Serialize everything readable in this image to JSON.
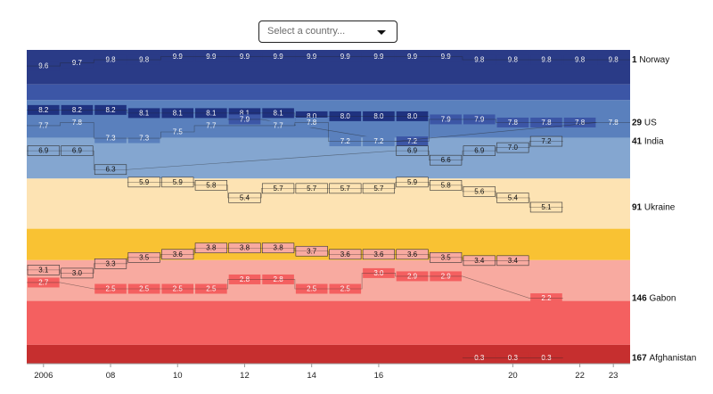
{
  "select": {
    "placeholder": "Select a country...",
    "icon": "caret-down-icon"
  },
  "chart_data": {
    "type": "area",
    "title": "",
    "xlabel": "",
    "ylabel": "",
    "x_ticks": [
      "2006",
      "08",
      "10",
      "12",
      "14",
      "16",
      "20",
      "22",
      "23"
    ],
    "x_categories": [
      "2006",
      "2007",
      "2008",
      "2009",
      "2010",
      "2011",
      "2012",
      "2013",
      "2014",
      "2015",
      "2016",
      "2017",
      "2018",
      "2019",
      "2020",
      "2021",
      "2022",
      "2023"
    ],
    "band_colors": [
      "#2a3b87",
      "#3c56a6",
      "#5a80bd",
      "#84a6d0",
      "#fde3b3",
      "#f9c233",
      "#f8aaa0",
      "#f46060",
      "#c62f2f"
    ],
    "series": [
      {
        "name": "Norway",
        "rank": "1",
        "label": "Norway",
        "color": "#2a3b87",
        "values": [
          9.6,
          9.7,
          9.8,
          9.8,
          9.9,
          9.9,
          9.9,
          9.9,
          9.9,
          9.9,
          9.9,
          9.9,
          9.9,
          9.8,
          9.8,
          9.8,
          9.8,
          9.8
        ]
      },
      {
        "name": "",
        "rank": "",
        "label": "",
        "color": "#1f3280",
        "values": [
          8.2,
          8.2,
          8.2,
          8.1,
          8.1,
          8.1,
          8.1,
          8.1,
          8.0,
          8.0,
          8.0,
          8.0,
          null,
          null,
          null,
          null,
          null,
          null
        ]
      },
      {
        "name": "",
        "rank": "",
        "label": "",
        "color": "#3c56a6",
        "values": [
          null,
          null,
          null,
          null,
          null,
          null,
          7.9,
          null,
          null,
          null,
          null,
          7.2,
          7.9,
          7.9,
          7.8,
          7.8,
          7.8,
          null
        ]
      },
      {
        "name": "US",
        "rank": "29",
        "label": "US",
        "color": "#5a80bd",
        "values": [
          7.7,
          7.8,
          7.3,
          7.3,
          7.5,
          7.7,
          null,
          7.7,
          7.8,
          7.2,
          7.2,
          null,
          null,
          null,
          null,
          null,
          null,
          7.8
        ]
      },
      {
        "name": "India",
        "rank": "41",
        "label": "India",
        "color": "#84a6d0",
        "values": [
          6.9,
          6.9,
          6.3,
          null,
          null,
          null,
          null,
          null,
          null,
          null,
          null,
          6.9,
          6.6,
          6.9,
          7.0,
          7.2,
          null,
          null
        ]
      },
      {
        "name": "Ukraine",
        "rank": "91",
        "label": "Ukraine",
        "color": "#fde3b3",
        "values": [
          null,
          null,
          null,
          5.9,
          5.9,
          5.8,
          5.4,
          5.7,
          5.7,
          5.7,
          5.7,
          5.9,
          5.8,
          5.6,
          5.4,
          5.1,
          null,
          null
        ]
      },
      {
        "name": "",
        "rank": "",
        "label": "",
        "color": "#f8aaa0",
        "values": [
          3.1,
          3.0,
          3.3,
          3.5,
          3.6,
          3.8,
          3.8,
          3.8,
          3.7,
          3.6,
          3.6,
          3.6,
          3.5,
          3.4,
          3.4,
          null,
          null,
          null
        ]
      },
      {
        "name": "Gabon",
        "rank": "146",
        "label": "Gabon",
        "color": "#f46060",
        "values": [
          2.7,
          null,
          2.5,
          2.5,
          2.5,
          2.5,
          2.8,
          2.8,
          2.5,
          2.5,
          3.0,
          2.9,
          2.9,
          null,
          null,
          2.2,
          null,
          null
        ]
      },
      {
        "name": "Afghanistan",
        "rank": "167",
        "label": "Afghanistan",
        "color": "#c62f2f",
        "values": [
          null,
          null,
          null,
          null,
          null,
          null,
          null,
          null,
          null,
          null,
          null,
          null,
          null,
          0.3,
          0.3,
          0.3,
          null,
          null
        ]
      }
    ]
  }
}
